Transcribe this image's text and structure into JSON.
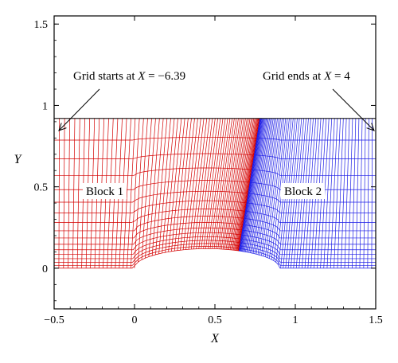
{
  "figure": {
    "xlabel": "X",
    "ylabel": "Y",
    "xlim": [
      -0.5,
      1.5
    ],
    "ylim": [
      -0.25,
      1.55
    ],
    "x_ticks": [
      "−0.5",
      "0",
      "0.5",
      "1",
      "1.5"
    ],
    "x_tick_values": [
      -0.5,
      0,
      0.5,
      1,
      1.5
    ],
    "y_ticks": [
      "0",
      "0.5",
      "1",
      "1.5"
    ],
    "y_tick_values": [
      0,
      0.5,
      1,
      1.5
    ],
    "domain_top_y": 0.92,
    "block_interface_x": [
      0.65,
      0.78
    ],
    "bump": {
      "start_x": 0.0,
      "end_x": 0.9,
      "peak_y": 0.12
    },
    "colors": {
      "block1": "#d40000",
      "block2": "#1f1fe6",
      "axes": "#000000"
    }
  },
  "annotations": {
    "grid_start_prefix": "Grid starts at ",
    "grid_start_var": "X",
    "grid_start_suffix": " = −6.39",
    "grid_end_prefix": "Grid ends at ",
    "grid_end_var": "X",
    "grid_end_suffix": " = 4"
  },
  "labels": {
    "block1": "Block 1",
    "block2": "Block 2"
  }
}
